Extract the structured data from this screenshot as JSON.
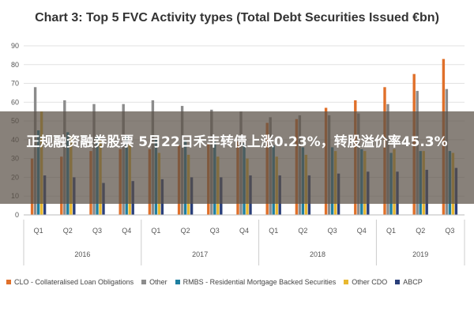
{
  "chart_data": {
    "type": "bar",
    "title": "Chart 3: Top 5 FVC Activity types (Total Debt Securities Issued €bn)",
    "ylim": [
      0,
      90
    ],
    "yticks": [
      0,
      10,
      20,
      30,
      40,
      50,
      60,
      70,
      80,
      90
    ],
    "grid": true,
    "legend_position": "bottom",
    "categories": [
      "Q1",
      "Q2",
      "Q3",
      "Q4",
      "Q1",
      "Q2",
      "Q3",
      "Q4",
      "Q1",
      "Q2",
      "Q3",
      "Q4",
      "Q1",
      "Q2",
      "Q3"
    ],
    "groups": [
      {
        "label": "2016",
        "count": 4
      },
      {
        "label": "2017",
        "count": 4
      },
      {
        "label": "2018",
        "count": 4
      },
      {
        "label": "2019",
        "count": 3
      }
    ],
    "series": [
      {
        "name": "CLO - Collateralised Loan Obligations",
        "color": "#e0702a",
        "values": [
          30,
          31,
          34,
          35,
          35,
          37,
          38,
          39,
          49,
          51,
          57,
          61,
          68,
          75,
          83
        ]
      },
      {
        "name": "Other",
        "color": "#8c8c8c",
        "values": [
          68,
          61,
          59,
          59,
          61,
          58,
          56,
          55,
          52,
          53,
          53,
          54,
          59,
          66,
          67
        ]
      },
      {
        "name": "RMBS - Residential Mortgage Backed Securities",
        "color": "#1f7fa0",
        "values": [
          45,
          44,
          42,
          42,
          40,
          40,
          39,
          38,
          37,
          36,
          36,
          35,
          33,
          34,
          34
        ]
      },
      {
        "name": "Other CDO",
        "color": "#e8b830",
        "values": [
          55,
          42,
          40,
          38,
          33,
          32,
          31,
          30,
          31,
          32,
          34,
          34,
          35,
          34,
          33
        ]
      },
      {
        "name": "ABCP",
        "color": "#2a3f7a",
        "values": [
          21,
          20,
          17,
          18,
          19,
          20,
          20,
          21,
          21,
          21,
          22,
          23,
          23,
          24,
          25
        ]
      }
    ]
  },
  "overlay": {
    "headline": "正规融资融券股票 5月22日禾丰转债上涨0.23%，转股溢价率45.3%"
  }
}
